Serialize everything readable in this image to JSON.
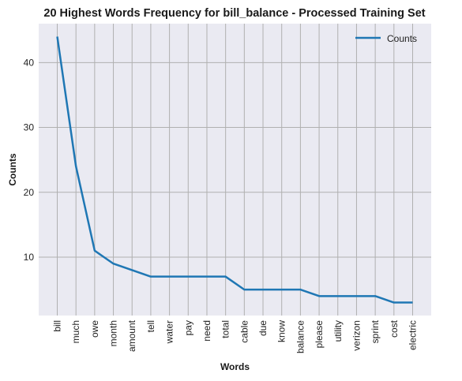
{
  "chart_data": {
    "type": "line",
    "title": "20 Highest Words Frequency for bill_balance - Processed Training Set",
    "xlabel": "Words",
    "ylabel": "Counts",
    "categories": [
      "bill",
      "much",
      "owe",
      "month",
      "amount",
      "tell",
      "water",
      "pay",
      "need",
      "total",
      "cable",
      "due",
      "know",
      "balance",
      "please",
      "utility",
      "verizon",
      "sprint",
      "cost",
      "electric"
    ],
    "series": [
      {
        "name": "Counts",
        "values": [
          44,
          24,
          11,
          9,
          8,
          7,
          7,
          7,
          7,
          7,
          5,
          5,
          5,
          5,
          4,
          4,
          4,
          4,
          3,
          3
        ]
      }
    ],
    "yticks": [
      10,
      20,
      30,
      40
    ],
    "ylim": [
      1,
      46
    ],
    "grid": true,
    "legend_position": "top-right",
    "colors": {
      "line": "#1f77b4",
      "background": "#eaeaf2",
      "grid": "#b0b0b0"
    }
  }
}
